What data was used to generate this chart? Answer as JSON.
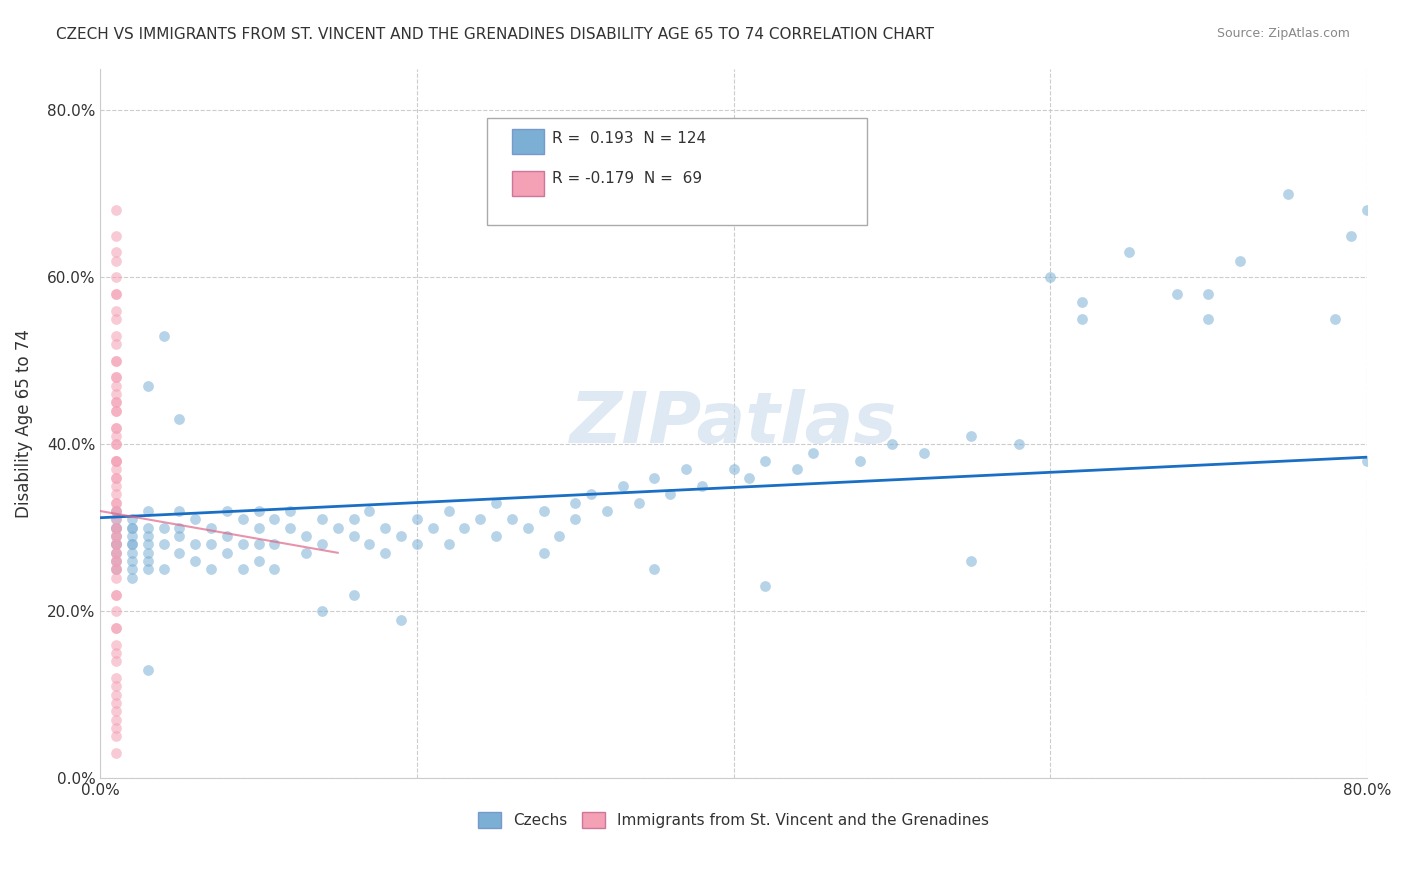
{
  "title": "CZECH VS IMMIGRANTS FROM ST. VINCENT AND THE GRENADINES DISABILITY AGE 65 TO 74 CORRELATION CHART",
  "source": "Source: ZipAtlas.com",
  "ylabel": "Disability Age 65 to 74",
  "xlabel": "",
  "xmin": 0.0,
  "xmax": 0.8,
  "ymin": 0.0,
  "ymax": 0.85,
  "czech_R": 0.193,
  "czech_N": 124,
  "svg_R": -0.179,
  "svg_N": 69,
  "blue_color": "#7bafd4",
  "pink_color": "#f4a0b5",
  "blue_line_color": "#1a6fc4",
  "pink_line_color": "#d44",
  "watermark": "ZIPatlas",
  "watermark_color": "#c8d8e8",
  "ytick_labels": [
    "0.0%",
    "20.0%",
    "40.0%",
    "60.0%",
    "80.0%"
  ],
  "ytick_vals": [
    0.0,
    0.2,
    0.4,
    0.6,
    0.8
  ],
  "xtick_labels": [
    "0.0%",
    "",
    "",
    "",
    "80.0%"
  ],
  "xtick_vals": [
    0.0,
    0.2,
    0.4,
    0.6,
    0.8
  ],
  "legend_label_czech": "Czechs",
  "legend_label_svg": "Immigrants from St. Vincent and the Grenadines",
  "blue_scatter_x": [
    0.01,
    0.01,
    0.01,
    0.01,
    0.01,
    0.01,
    0.01,
    0.01,
    0.01,
    0.01,
    0.02,
    0.02,
    0.02,
    0.02,
    0.02,
    0.02,
    0.02,
    0.02,
    0.02,
    0.02,
    0.03,
    0.03,
    0.03,
    0.03,
    0.03,
    0.03,
    0.03,
    0.04,
    0.04,
    0.04,
    0.05,
    0.05,
    0.05,
    0.05,
    0.06,
    0.06,
    0.06,
    0.07,
    0.07,
    0.07,
    0.08,
    0.08,
    0.08,
    0.09,
    0.09,
    0.09,
    0.1,
    0.1,
    0.1,
    0.1,
    0.11,
    0.11,
    0.11,
    0.12,
    0.12,
    0.13,
    0.13,
    0.14,
    0.14,
    0.15,
    0.16,
    0.16,
    0.17,
    0.17,
    0.18,
    0.18,
    0.19,
    0.2,
    0.2,
    0.21,
    0.22,
    0.22,
    0.23,
    0.24,
    0.25,
    0.25,
    0.26,
    0.27,
    0.28,
    0.29,
    0.3,
    0.3,
    0.31,
    0.32,
    0.33,
    0.34,
    0.35,
    0.36,
    0.37,
    0.38,
    0.4,
    0.41,
    0.42,
    0.44,
    0.45,
    0.48,
    0.5,
    0.52,
    0.55,
    0.58,
    0.6,
    0.62,
    0.65,
    0.68,
    0.7,
    0.72,
    0.75,
    0.78,
    0.79,
    0.8,
    0.03,
    0.04,
    0.05,
    0.14,
    0.16,
    0.19,
    0.28,
    0.35,
    0.42,
    0.55,
    0.62,
    0.7,
    0.8,
    0.03
  ],
  "blue_scatter_y": [
    0.28,
    0.3,
    0.32,
    0.27,
    0.25,
    0.3,
    0.29,
    0.26,
    0.28,
    0.31,
    0.3,
    0.25,
    0.28,
    0.27,
    0.3,
    0.29,
    0.24,
    0.26,
    0.31,
    0.28,
    0.3,
    0.28,
    0.25,
    0.27,
    0.32,
    0.29,
    0.26,
    0.28,
    0.3,
    0.25,
    0.3,
    0.27,
    0.32,
    0.29,
    0.31,
    0.28,
    0.26,
    0.3,
    0.28,
    0.25,
    0.32,
    0.29,
    0.27,
    0.31,
    0.28,
    0.25,
    0.3,
    0.28,
    0.32,
    0.26,
    0.31,
    0.28,
    0.25,
    0.3,
    0.32,
    0.29,
    0.27,
    0.31,
    0.28,
    0.3,
    0.29,
    0.31,
    0.28,
    0.32,
    0.3,
    0.27,
    0.29,
    0.31,
    0.28,
    0.3,
    0.32,
    0.28,
    0.3,
    0.31,
    0.29,
    0.33,
    0.31,
    0.3,
    0.32,
    0.29,
    0.33,
    0.31,
    0.34,
    0.32,
    0.35,
    0.33,
    0.36,
    0.34,
    0.37,
    0.35,
    0.37,
    0.36,
    0.38,
    0.37,
    0.39,
    0.38,
    0.4,
    0.39,
    0.41,
    0.4,
    0.6,
    0.57,
    0.63,
    0.58,
    0.55,
    0.62,
    0.7,
    0.55,
    0.65,
    0.68,
    0.47,
    0.53,
    0.43,
    0.2,
    0.22,
    0.19,
    0.27,
    0.25,
    0.23,
    0.26,
    0.55,
    0.58,
    0.38,
    0.13
  ],
  "pink_scatter_x": [
    0.01,
    0.01,
    0.01,
    0.01,
    0.01,
    0.01,
    0.01,
    0.01,
    0.01,
    0.01,
    0.01,
    0.01,
    0.01,
    0.01,
    0.01,
    0.01,
    0.01,
    0.01,
    0.01,
    0.01,
    0.01,
    0.01,
    0.01,
    0.01,
    0.01,
    0.01,
    0.01,
    0.01,
    0.01,
    0.01,
    0.01,
    0.01,
    0.01,
    0.01,
    0.01,
    0.01,
    0.01,
    0.01,
    0.01,
    0.01,
    0.01,
    0.01,
    0.01,
    0.01,
    0.01,
    0.01,
    0.01,
    0.01,
    0.01,
    0.01,
    0.01,
    0.01,
    0.01,
    0.01,
    0.01,
    0.01,
    0.01,
    0.01,
    0.01,
    0.01,
    0.01,
    0.01,
    0.01,
    0.01,
    0.01,
    0.01,
    0.01,
    0.01,
    0.01
  ],
  "pink_scatter_y": [
    0.28,
    0.3,
    0.32,
    0.27,
    0.25,
    0.3,
    0.29,
    0.26,
    0.22,
    0.24,
    0.31,
    0.35,
    0.38,
    0.42,
    0.45,
    0.47,
    0.5,
    0.38,
    0.33,
    0.36,
    0.4,
    0.18,
    0.15,
    0.2,
    0.28,
    0.08,
    0.12,
    0.16,
    0.44,
    0.52,
    0.55,
    0.58,
    0.6,
    0.63,
    0.22,
    0.26,
    0.18,
    0.14,
    0.1,
    0.06,
    0.48,
    0.34,
    0.38,
    0.42,
    0.46,
    0.5,
    0.25,
    0.29,
    0.33,
    0.37,
    0.41,
    0.45,
    0.56,
    0.53,
    0.62,
    0.65,
    0.68,
    0.03,
    0.05,
    0.07,
    0.09,
    0.11,
    0.32,
    0.36,
    0.4,
    0.44,
    0.48,
    0.27,
    0.58
  ]
}
